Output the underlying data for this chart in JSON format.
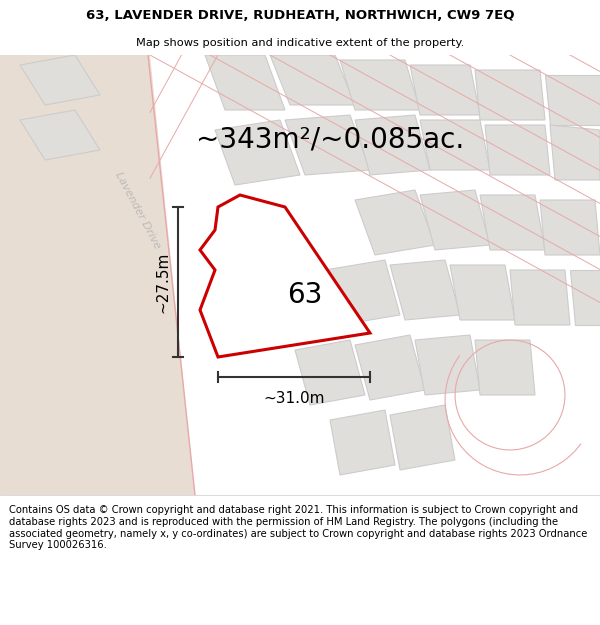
{
  "title_line1": "63, LAVENDER DRIVE, RUDHEATH, NORTHWICH, CW9 7EQ",
  "title_line2": "Map shows position and indicative extent of the property.",
  "area_label": "~343m²/~0.085ac.",
  "plot_number": "63",
  "dim_height": "~27.5m",
  "dim_width": "~31.0m",
  "street_label": "Lavender Drive",
  "footer_text": "Contains OS data © Crown copyright and database right 2021. This information is subject to Crown copyright and database rights 2023 and is reproduced with the permission of HM Land Registry. The polygons (including the associated geometry, namely x, y co-ordinates) are subject to Crown copyright and database rights 2023 Ordnance Survey 100026316.",
  "map_bg": "#f5f3f0",
  "road_fill": "#e8ddd2",
  "plot_fill": "#f5f3f0",
  "plot_outline": "#cc0000",
  "building_fill": "#e0deda",
  "other_outline_color": "#e8a8a8",
  "dim_line_color": "#333333",
  "street_label_color": "#bbbbbb",
  "title_fontsize": 9.5,
  "subtitle_fontsize": 8.2,
  "area_fontsize": 20,
  "plot_num_fontsize": 20,
  "dim_fontsize": 11,
  "footer_fontsize": 7.2
}
